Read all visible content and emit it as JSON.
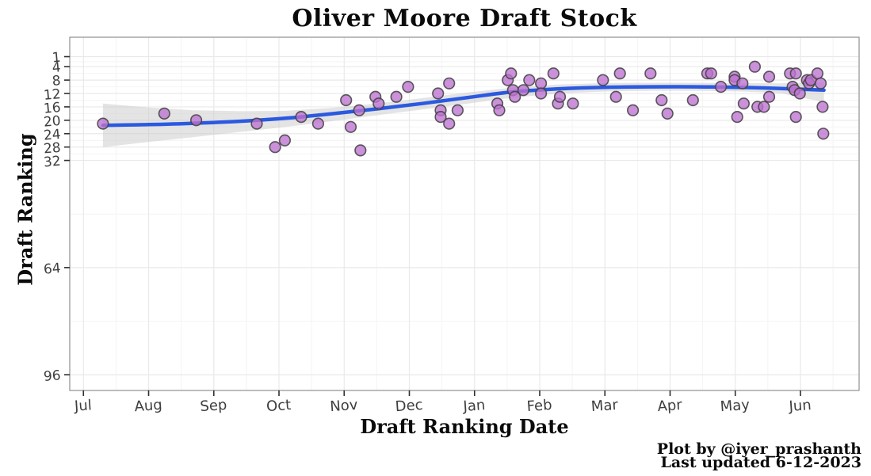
{
  "page": {
    "attribution_line1": "Plot by @iyer_prashanth",
    "attribution_line2": "Last updated 6-12-2023"
  },
  "chart_data": {
    "type": "scatter",
    "title": "Oliver Moore Draft Stock",
    "xlabel": "Draft Ranking Date",
    "ylabel": "Draft Ranking",
    "legend": "none",
    "grid": "on",
    "x_axis": {
      "unit": "months since Jul",
      "tick_labels": [
        "Jul",
        "Aug",
        "Sep",
        "Oct",
        "Nov",
        "Dec",
        "Jan",
        "Feb",
        "Mar",
        "Apr",
        "May",
        "Jun"
      ],
      "tick_positions": [
        0,
        1,
        2,
        3,
        4,
        5,
        6,
        7,
        8,
        9,
        10,
        11
      ],
      "minor_positions": [
        0.5,
        1.5,
        2.5,
        3.5,
        4.5,
        5.5,
        6.5,
        7.5,
        8.5,
        9.5,
        10.5,
        11.5
      ],
      "xlim": [
        -0.21,
        11.9
      ]
    },
    "y_axis": {
      "reversed": true,
      "tick_values": [
        1,
        4,
        8,
        12,
        16,
        20,
        24,
        28,
        32,
        64,
        96
      ],
      "tick_labels": [
        "1",
        "4",
        "8",
        "12",
        "16",
        "20",
        "24",
        "28",
        "32",
        "64",
        "96"
      ],
      "minor_values": [
        2.5,
        6,
        10,
        14,
        18,
        22,
        26,
        30,
        48,
        80
      ],
      "ylim": [
        -4.8,
        100.7
      ]
    },
    "points": [
      [
        0.3,
        21
      ],
      [
        1.24,
        18
      ],
      [
        1.73,
        20
      ],
      [
        2.66,
        21
      ],
      [
        2.94,
        28
      ],
      [
        3.09,
        26
      ],
      [
        3.34,
        19
      ],
      [
        3.6,
        21
      ],
      [
        4.03,
        14
      ],
      [
        4.1,
        22
      ],
      [
        4.23,
        17
      ],
      [
        4.25,
        29
      ],
      [
        4.48,
        13
      ],
      [
        4.53,
        15
      ],
      [
        4.8,
        13
      ],
      [
        4.98,
        10
      ],
      [
        5.44,
        12
      ],
      [
        5.48,
        17
      ],
      [
        5.48,
        19
      ],
      [
        5.61,
        9
      ],
      [
        5.61,
        21
      ],
      [
        5.74,
        17
      ],
      [
        6.35,
        15
      ],
      [
        6.38,
        17
      ],
      [
        6.51,
        8
      ],
      [
        6.56,
        6
      ],
      [
        6.59,
        11
      ],
      [
        6.62,
        13
      ],
      [
        6.75,
        11
      ],
      [
        6.84,
        8
      ],
      [
        7.02,
        9
      ],
      [
        7.02,
        12
      ],
      [
        7.21,
        6
      ],
      [
        7.28,
        15
      ],
      [
        7.31,
        13
      ],
      [
        7.51,
        15
      ],
      [
        7.97,
        8
      ],
      [
        8.17,
        13
      ],
      [
        8.23,
        6
      ],
      [
        8.43,
        17
      ],
      [
        8.7,
        6
      ],
      [
        8.87,
        14
      ],
      [
        8.96,
        18
      ],
      [
        9.35,
        14
      ],
      [
        9.57,
        6
      ],
      [
        9.63,
        6
      ],
      [
        9.78,
        10
      ],
      [
        9.99,
        7
      ],
      [
        9.99,
        8
      ],
      [
        10.03,
        19
      ],
      [
        10.11,
        9
      ],
      [
        10.13,
        15
      ],
      [
        10.3,
        4
      ],
      [
        10.34,
        16
      ],
      [
        10.44,
        16
      ],
      [
        10.52,
        7
      ],
      [
        10.52,
        13
      ],
      [
        10.84,
        6
      ],
      [
        10.88,
        10
      ],
      [
        10.91,
        11
      ],
      [
        10.93,
        6
      ],
      [
        10.93,
        19
      ],
      [
        10.99,
        12
      ],
      [
        11.1,
        8
      ],
      [
        11.13,
        9
      ],
      [
        11.16,
        8
      ],
      [
        11.26,
        6
      ],
      [
        11.31,
        9
      ],
      [
        11.34,
        16
      ],
      [
        11.35,
        24
      ]
    ],
    "trend_line": [
      [
        0.3,
        21.5
      ],
      [
        1.0,
        21.3
      ],
      [
        1.7,
        20.9
      ],
      [
        2.4,
        20.3
      ],
      [
        3.1,
        19.4
      ],
      [
        3.8,
        18.1
      ],
      [
        4.5,
        16.6
      ],
      [
        5.2,
        15.0
      ],
      [
        5.9,
        13.2
      ],
      [
        6.6,
        11.5
      ],
      [
        7.3,
        10.6
      ],
      [
        8.0,
        10.15
      ],
      [
        8.7,
        10.0
      ],
      [
        9.4,
        10.0
      ],
      [
        10.1,
        10.2
      ],
      [
        10.7,
        10.5
      ],
      [
        11.36,
        11.0
      ]
    ],
    "ribbon": [
      [
        0.3,
        15.0,
        28.0
      ],
      [
        1.0,
        16.2,
        26.5
      ],
      [
        1.7,
        17.0,
        25.0
      ],
      [
        2.4,
        17.3,
        23.5
      ],
      [
        3.1,
        17.2,
        22.0
      ],
      [
        3.8,
        16.3,
        20.3
      ],
      [
        4.5,
        15.0,
        18.5
      ],
      [
        5.2,
        13.4,
        16.8
      ],
      [
        5.9,
        11.7,
        15.0
      ],
      [
        6.6,
        10.2,
        13.2
      ],
      [
        7.3,
        9.3,
        12.0
      ],
      [
        8.0,
        8.9,
        11.4
      ],
      [
        8.7,
        8.8,
        11.2
      ],
      [
        9.4,
        8.8,
        11.2
      ],
      [
        10.1,
        8.9,
        11.4
      ],
      [
        10.7,
        9.0,
        11.9
      ],
      [
        11.36,
        8.6,
        14.6
      ]
    ],
    "colors": {
      "point_fill": "#bd72cf",
      "point_stroke": "#3f3f3f",
      "trend_line": "#2b59e0",
      "ribbon": "#c9c9c9",
      "grid_major": "#e9e9e9",
      "grid_minor": "#f4f4f4",
      "panel_border": "#8f8f8f",
      "tick_mark": "#2f2f2f",
      "tick_label": "#3e3e3e"
    }
  }
}
